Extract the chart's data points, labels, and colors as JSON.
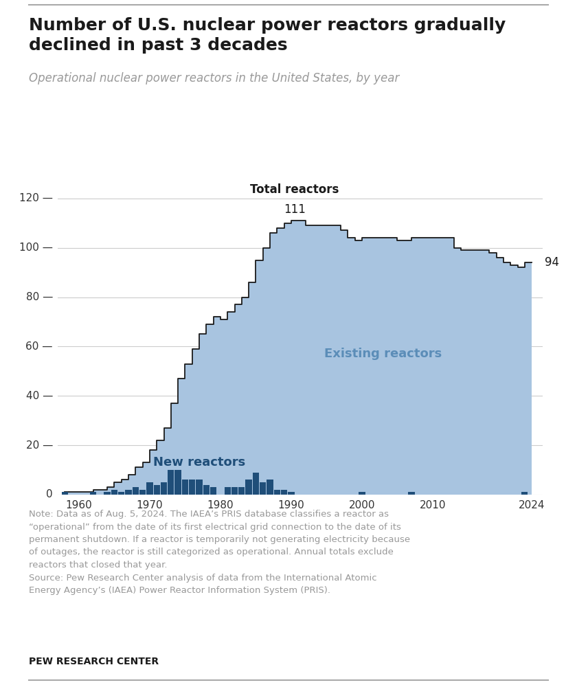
{
  "title": "Number of U.S. nuclear power reactors gradually\ndeclined in past 3 decades",
  "subtitle": "Operational nuclear power reactors in the United States, by year",
  "note_line1": "Note: Data as of Aug. 5, 2024. The IAEA’s PRIS database classifies a reactor as",
  "note_line2": "“operational” from the date of its first electrical grid connection to the date of its",
  "note_line3": "permanent shutdown. If a reactor is temporarily not generating electricity because",
  "note_line4": "of outages, the reactor is still categorized as operational. Annual totals exclude",
  "note_line5": "reactors that closed that year.",
  "note_line6": "Source: Pew Research Center analysis of data from the International Atomic",
  "note_line7": "Energy Agency’s (IAEA) Power Reactor Information System (PRIS).",
  "source_label": "PEW RESEARCH CENTER",
  "years": [
    1958,
    1959,
    1960,
    1961,
    1962,
    1963,
    1964,
    1965,
    1966,
    1967,
    1968,
    1969,
    1970,
    1971,
    1972,
    1973,
    1974,
    1975,
    1976,
    1977,
    1978,
    1979,
    1980,
    1981,
    1982,
    1983,
    1984,
    1985,
    1986,
    1987,
    1988,
    1989,
    1990,
    1991,
    1992,
    1993,
    1994,
    1995,
    1996,
    1997,
    1998,
    1999,
    2000,
    2001,
    2002,
    2003,
    2004,
    2005,
    2006,
    2007,
    2008,
    2009,
    2010,
    2011,
    2012,
    2013,
    2014,
    2015,
    2016,
    2017,
    2018,
    2019,
    2020,
    2021,
    2022,
    2023,
    2024
  ],
  "total_reactors": [
    1,
    1,
    1,
    1,
    2,
    2,
    3,
    5,
    6,
    8,
    11,
    13,
    18,
    22,
    27,
    37,
    47,
    53,
    59,
    65,
    69,
    72,
    71,
    74,
    77,
    80,
    86,
    95,
    100,
    106,
    108,
    110,
    111,
    111,
    109,
    109,
    109,
    109,
    109,
    107,
    104,
    103,
    104,
    104,
    104,
    104,
    104,
    103,
    103,
    104,
    104,
    104,
    104,
    104,
    104,
    100,
    99,
    99,
    99,
    99,
    98,
    96,
    94,
    93,
    92,
    94,
    94
  ],
  "new_reactors": [
    1,
    0,
    0,
    0,
    1,
    0,
    1,
    2,
    1,
    2,
    3,
    2,
    5,
    4,
    5,
    10,
    10,
    6,
    6,
    6,
    4,
    3,
    0,
    3,
    3,
    3,
    6,
    9,
    5,
    6,
    2,
    2,
    1,
    0,
    0,
    0,
    0,
    0,
    0,
    0,
    0,
    0,
    1,
    0,
    0,
    0,
    0,
    0,
    0,
    1,
    0,
    0,
    0,
    0,
    0,
    0,
    0,
    0,
    0,
    0,
    0,
    0,
    0,
    0,
    0,
    1,
    0
  ],
  "existing_color": "#a8c4e0",
  "new_color": "#1f4e79",
  "line_color": "#1a1a1a",
  "ylim": [
    0,
    128
  ],
  "yticks": [
    0,
    20,
    40,
    60,
    80,
    100,
    120
  ],
  "bg_color": "#ffffff",
  "title_color": "#1a1a1a",
  "subtitle_color": "#999999",
  "note_color": "#999999",
  "gridline_color": "#cccccc",
  "existing_label_color": "#5b8db8",
  "new_label_color": "#1f4e79"
}
